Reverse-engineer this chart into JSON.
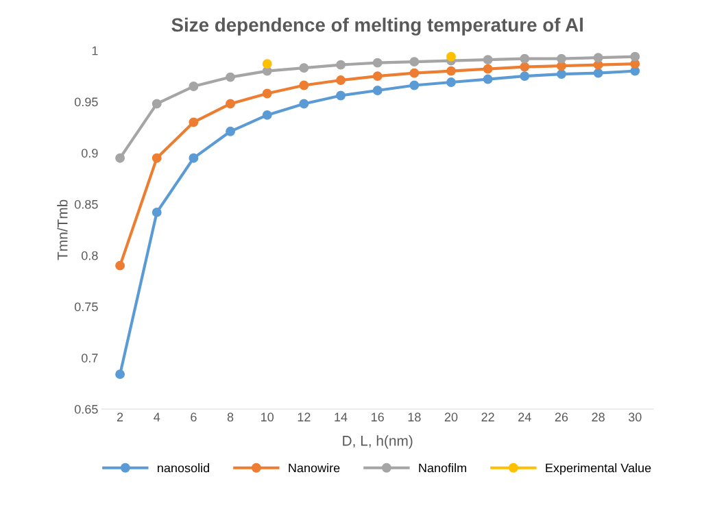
{
  "chart_data": {
    "type": "line",
    "title": "Size dependence of melting temperature of Al",
    "xlabel": "D, L, h(nm)",
    "ylabel": "Tmn/Tmb",
    "categories": [
      "2",
      "4",
      "6",
      "8",
      "10",
      "12",
      "14",
      "16",
      "18",
      "20",
      "22",
      "24",
      "26",
      "28",
      "30"
    ],
    "series": [
      {
        "name": "nanosolid",
        "color": "#5b9bd5",
        "values": [
          0.684,
          0.842,
          0.895,
          0.921,
          0.937,
          0.948,
          0.956,
          0.961,
          0.966,
          0.969,
          0.972,
          0.975,
          0.977,
          0.978,
          0.98
        ]
      },
      {
        "name": "Nanowire",
        "color": "#ed7d31",
        "values": [
          0.79,
          0.895,
          0.93,
          0.948,
          0.958,
          0.966,
          0.971,
          0.975,
          0.978,
          0.98,
          0.982,
          0.984,
          0.985,
          0.986,
          0.987
        ]
      },
      {
        "name": "Nanofilm",
        "color": "#a5a5a5",
        "values": [
          0.895,
          0.948,
          0.965,
          0.974,
          0.98,
          0.983,
          0.986,
          0.988,
          0.989,
          0.99,
          0.991,
          0.992,
          0.992,
          0.993,
          0.994
        ]
      },
      {
        "name": "Experimental Value",
        "type": "scatter",
        "color": "#ffc000",
        "values": [
          null,
          null,
          null,
          null,
          0.987,
          null,
          null,
          null,
          null,
          0.994,
          null,
          null,
          null,
          null,
          null
        ]
      }
    ],
    "ylim": [
      0.65,
      1.0
    ],
    "yticks": [
      0.65,
      0.7,
      0.75,
      0.8,
      0.85,
      0.9,
      0.95,
      1
    ],
    "grid": false,
    "legend": "bottom",
    "marker": "circle",
    "line_style": "solid"
  }
}
